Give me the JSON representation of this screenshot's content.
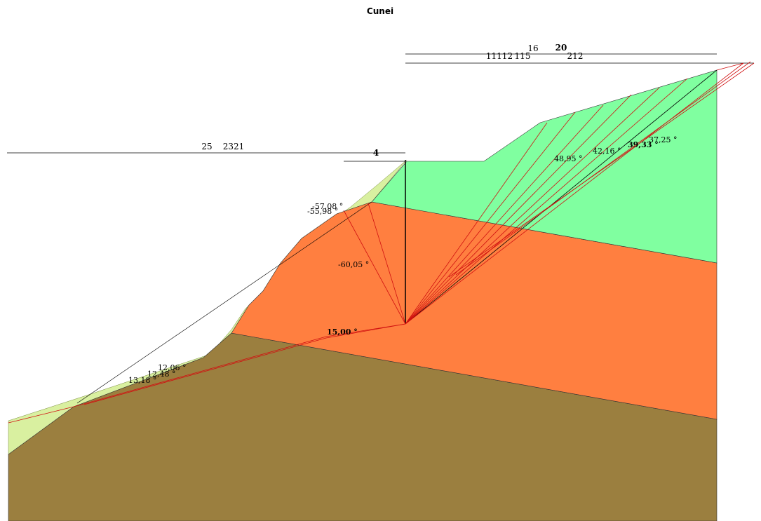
{
  "title": "Cunei",
  "top_labels": [
    "16",
    "20",
    "11112",
    "115",
    "212"
  ],
  "left_labels": [
    "25",
    "2321",
    "4"
  ],
  "angle_labels": [
    "-57,08 °",
    "-55,98 °",
    "-60,05 °",
    "15,00 °",
    "12,06 °",
    "12,48 °",
    "13,18 °",
    "48,95 °",
    "42,16 °",
    "39,33 °",
    "37,25 °"
  ]
}
